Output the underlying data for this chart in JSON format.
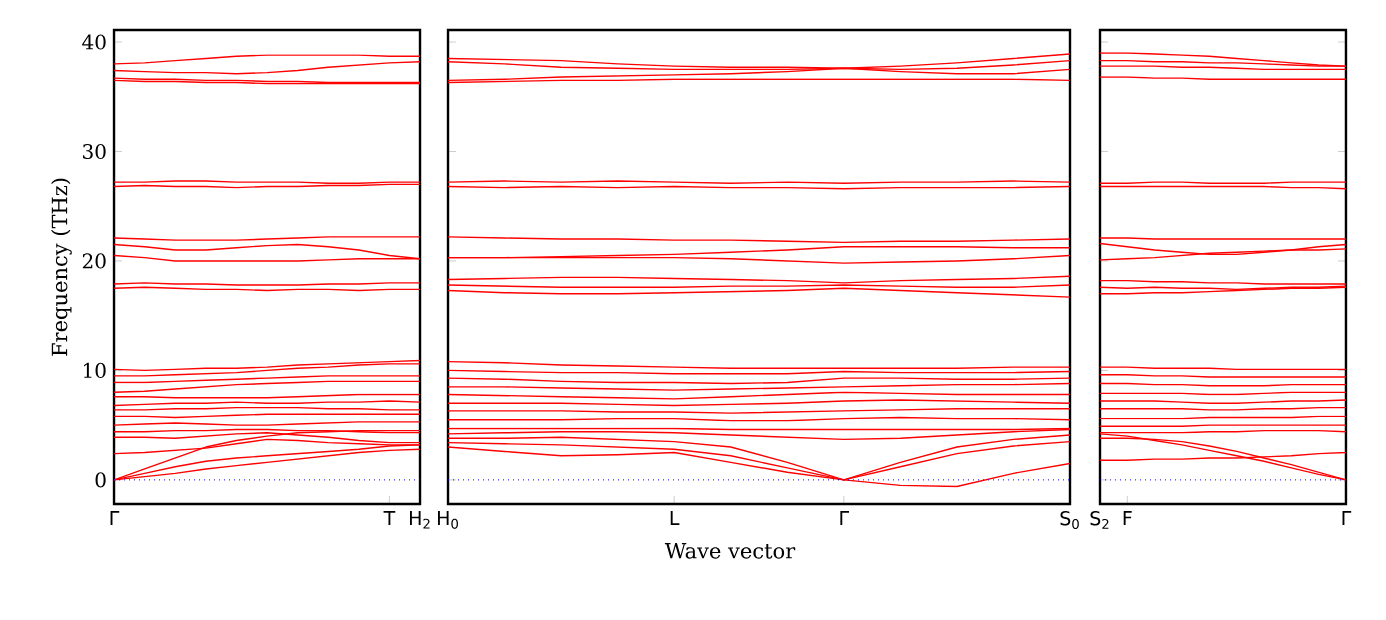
{
  "chart_data": [
    {
      "type": "line",
      "ylabel": "Frequency (THz)",
      "categories": [
        "Γ",
        null,
        null,
        null,
        null,
        null,
        null,
        null,
        null,
        "T",
        "H$_{2}$"
      ],
      "ylim": [
        -2.2,
        41.1
      ],
      "yticks": [
        0,
        10,
        20,
        30,
        40
      ],
      "line_style": "solid",
      "ref_lines": [
        {
          "axis": "y",
          "value": 0,
          "color": "#0000ff",
          "line_style": "dotted"
        }
      ],
      "series": [
        {
          "color": "#ff0000",
          "values": [
            37.4,
            37.3,
            37.2,
            37.2,
            37.1,
            37.2,
            37.4,
            37.7,
            37.9,
            38.1,
            38.2
          ]
        },
        {
          "color": "#ff0000",
          "values": [
            38.0,
            38.1,
            38.3,
            38.5,
            38.7,
            38.8,
            38.8,
            38.8,
            38.8,
            38.7,
            38.7
          ]
        },
        {
          "color": "#ff0000",
          "values": [
            36.5,
            36.4,
            36.4,
            36.3,
            36.3,
            36.2,
            36.2,
            36.2,
            36.2,
            36.2,
            36.2
          ]
        },
        {
          "color": "#ff0000",
          "values": [
            36.7,
            36.6,
            36.6,
            36.5,
            36.5,
            36.4,
            36.4,
            36.3,
            36.3,
            36.3,
            36.3
          ]
        },
        {
          "color": "#ff0000",
          "values": [
            27.2,
            27.2,
            27.3,
            27.3,
            27.2,
            27.2,
            27.2,
            27.1,
            27.1,
            27.2,
            27.2
          ]
        },
        {
          "color": "#ff0000",
          "values": [
            26.8,
            26.9,
            26.8,
            26.8,
            26.7,
            26.8,
            26.8,
            26.9,
            26.9,
            27.0,
            27.0
          ]
        },
        {
          "color": "#ff0000",
          "values": [
            22.1,
            22.0,
            21.9,
            21.9,
            21.9,
            22.0,
            22.1,
            22.2,
            22.2,
            22.2,
            22.2
          ]
        },
        {
          "color": "#ff0000",
          "values": [
            21.5,
            21.3,
            21.0,
            21.0,
            21.2,
            21.4,
            21.5,
            21.3,
            21.0,
            20.5,
            20.2
          ]
        },
        {
          "color": "#ff0000",
          "values": [
            20.5,
            20.3,
            20.0,
            20.0,
            20.0,
            20.0,
            20.0,
            20.1,
            20.2,
            20.2,
            20.2
          ]
        },
        {
          "color": "#ff0000",
          "values": [
            17.9,
            18.0,
            17.9,
            17.9,
            17.8,
            17.8,
            17.8,
            17.9,
            17.9,
            18.0,
            18.0
          ]
        },
        {
          "color": "#ff0000",
          "values": [
            17.5,
            17.6,
            17.5,
            17.4,
            17.4,
            17.3,
            17.4,
            17.4,
            17.3,
            17.4,
            17.4
          ]
        },
        {
          "color": "#ff0000",
          "values": [
            10.1,
            10.0,
            10.1,
            10.2,
            10.2,
            10.3,
            10.5,
            10.6,
            10.7,
            10.8,
            10.9
          ]
        },
        {
          "color": "#ff0000",
          "values": [
            9.5,
            9.5,
            9.6,
            9.7,
            9.8,
            10.0,
            10.2,
            10.3,
            10.5,
            10.6,
            10.6
          ]
        },
        {
          "color": "#ff0000",
          "values": [
            8.9,
            8.9,
            9.0,
            9.1,
            9.2,
            9.3,
            9.4,
            9.5,
            9.5,
            9.5,
            9.5
          ]
        },
        {
          "color": "#ff0000",
          "values": [
            8.0,
            8.1,
            8.3,
            8.5,
            8.7,
            8.8,
            8.9,
            9.0,
            9.0,
            9.0,
            9.0
          ]
        },
        {
          "color": "#ff0000",
          "values": [
            7.6,
            7.6,
            7.5,
            7.5,
            7.5,
            7.5,
            7.6,
            7.7,
            7.8,
            7.8,
            7.8
          ]
        },
        {
          "color": "#ff0000",
          "values": [
            6.8,
            6.9,
            7.0,
            7.0,
            7.1,
            7.0,
            7.0,
            7.1,
            7.1,
            7.2,
            7.1
          ]
        },
        {
          "color": "#ff0000",
          "values": [
            6.4,
            6.4,
            6.5,
            6.5,
            6.6,
            6.6,
            6.6,
            6.5,
            6.5,
            6.4,
            6.4
          ]
        },
        {
          "color": "#ff0000",
          "values": [
            5.8,
            5.8,
            5.7,
            5.8,
            5.9,
            6.0,
            6.0,
            6.0,
            6.0,
            6.0,
            6.0
          ]
        },
        {
          "color": "#ff0000",
          "values": [
            5.0,
            5.1,
            5.2,
            5.1,
            5.0,
            5.0,
            5.1,
            5.2,
            5.3,
            5.3,
            5.3
          ]
        },
        {
          "color": "#ff0000",
          "values": [
            4.4,
            4.4,
            4.5,
            4.5,
            4.6,
            4.6,
            4.5,
            4.5,
            4.4,
            4.3,
            4.3
          ]
        },
        {
          "color": "#ff0000",
          "values": [
            3.9,
            3.9,
            3.8,
            4.0,
            4.2,
            4.3,
            4.1,
            3.9,
            3.6,
            3.4,
            3.4
          ]
        },
        {
          "color": "#ff0000",
          "values": [
            2.4,
            2.5,
            2.7,
            2.9,
            3.3,
            3.7,
            3.6,
            3.4,
            3.3,
            3.2,
            3.2
          ]
        },
        {
          "color": "#ff0000",
          "values": [
            0,
            0.6,
            1.2,
            1.7,
            2.0,
            2.2,
            2.4,
            2.6,
            2.8,
            3.1,
            3.2
          ]
        },
        {
          "color": "#ff0000",
          "values": [
            0,
            0.3,
            0.6,
            1.0,
            1.3,
            1.6,
            1.9,
            2.2,
            2.5,
            2.7,
            2.8
          ]
        },
        {
          "color": "#ff0000",
          "values": [
            0,
            1.0,
            2.0,
            3.0,
            3.6,
            4.0,
            4.3,
            4.4,
            4.5,
            4.5,
            4.5
          ]
        }
      ]
    },
    {
      "type": "line",
      "xlabel": "Wave vector",
      "tick_labels": "x",
      "categories": [
        "H$_{0}$",
        null,
        null,
        null,
        "L",
        null,
        null,
        "Γ",
        null,
        null,
        null,
        "S$_{0}$"
      ],
      "ylim": [
        -2.2,
        41.1
      ],
      "yticks": [
        0,
        10,
        20,
        30,
        40
      ],
      "line_style": "solid",
      "ref_lines": [
        {
          "axis": "y",
          "value": 0,
          "color": "#0000ff",
          "line_style": "dotted"
        }
      ],
      "series": [
        {
          "color": "#ff0000",
          "values": [
            38.5,
            38.4,
            38.3,
            38.0,
            37.8,
            37.7,
            37.7,
            37.6,
            37.8,
            38.1,
            38.5,
            38.9
          ]
        },
        {
          "color": "#ff0000",
          "values": [
            38.2,
            38.0,
            37.7,
            37.6,
            37.5,
            37.5,
            37.5,
            37.6,
            37.5,
            37.6,
            37.9,
            38.3
          ]
        },
        {
          "color": "#ff0000",
          "values": [
            36.5,
            36.6,
            36.8,
            36.9,
            37.0,
            37.1,
            37.3,
            37.6,
            37.3,
            37.1,
            37.1,
            37.5
          ]
        },
        {
          "color": "#ff0000",
          "values": [
            36.3,
            36.4,
            36.5,
            36.5,
            36.6,
            36.6,
            36.6,
            36.6,
            36.6,
            36.6,
            36.6,
            36.5
          ]
        },
        {
          "color": "#ff0000",
          "values": [
            27.2,
            27.3,
            27.2,
            27.3,
            27.2,
            27.1,
            27.2,
            27.1,
            27.2,
            27.2,
            27.3,
            27.2
          ]
        },
        {
          "color": "#ff0000",
          "values": [
            26.8,
            26.7,
            26.8,
            26.7,
            26.8,
            26.7,
            26.7,
            26.6,
            26.7,
            26.7,
            26.7,
            26.8
          ]
        },
        {
          "color": "#ff0000",
          "values": [
            22.2,
            22.1,
            22.0,
            22.0,
            21.9,
            21.9,
            21.8,
            21.7,
            21.8,
            21.8,
            21.9,
            22.0
          ]
        },
        {
          "color": "#ff0000",
          "values": [
            20.3,
            20.3,
            20.4,
            20.5,
            20.6,
            20.8,
            21.0,
            21.3,
            21.3,
            21.3,
            21.2,
            21.2
          ]
        },
        {
          "color": "#ff0000",
          "values": [
            20.3,
            20.3,
            20.3,
            20.3,
            20.3,
            20.2,
            20.0,
            19.8,
            19.9,
            20.0,
            20.2,
            20.5
          ]
        },
        {
          "color": "#ff0000",
          "values": [
            18.3,
            18.4,
            18.5,
            18.5,
            18.4,
            18.3,
            18.2,
            18.0,
            18.2,
            18.3,
            18.4,
            18.6
          ]
        },
        {
          "color": "#ff0000",
          "values": [
            17.8,
            17.7,
            17.6,
            17.6,
            17.6,
            17.7,
            17.7,
            17.8,
            17.7,
            17.6,
            17.6,
            17.8
          ]
        },
        {
          "color": "#ff0000",
          "values": [
            17.3,
            17.1,
            17.0,
            17.0,
            17.1,
            17.2,
            17.3,
            17.5,
            17.3,
            17.1,
            16.9,
            16.7
          ]
        },
        {
          "color": "#ff0000",
          "values": [
            10.8,
            10.7,
            10.5,
            10.4,
            10.3,
            10.2,
            10.2,
            10.2,
            10.2,
            10.2,
            10.3,
            10.3
          ]
        },
        {
          "color": "#ff0000",
          "values": [
            10.0,
            9.9,
            9.8,
            9.8,
            9.7,
            9.7,
            9.7,
            9.9,
            9.8,
            9.8,
            9.8,
            9.9
          ]
        },
        {
          "color": "#ff0000",
          "values": [
            9.3,
            9.2,
            9.0,
            8.9,
            8.9,
            8.8,
            8.9,
            9.3,
            9.3,
            9.2,
            9.2,
            9.3
          ]
        },
        {
          "color": "#ff0000",
          "values": [
            8.5,
            8.5,
            8.4,
            8.3,
            8.2,
            8.3,
            8.4,
            8.5,
            8.6,
            8.7,
            8.7,
            8.8
          ]
        },
        {
          "color": "#ff0000",
          "values": [
            7.8,
            7.7,
            7.6,
            7.5,
            7.4,
            7.6,
            7.8,
            8.0,
            7.9,
            7.8,
            7.8,
            7.8
          ]
        },
        {
          "color": "#ff0000",
          "values": [
            7.0,
            7.0,
            7.0,
            6.9,
            6.8,
            6.9,
            7.0,
            7.2,
            7.3,
            7.2,
            7.1,
            7.0
          ]
        },
        {
          "color": "#ff0000",
          "values": [
            6.3,
            6.3,
            6.3,
            6.2,
            6.2,
            6.1,
            6.2,
            6.3,
            6.4,
            6.5,
            6.5,
            6.5
          ]
        },
        {
          "color": "#ff0000",
          "values": [
            5.5,
            5.5,
            5.5,
            5.6,
            5.6,
            5.4,
            5.4,
            5.6,
            5.7,
            5.6,
            5.6,
            5.5
          ]
        },
        {
          "color": "#ff0000",
          "values": [
            4.7,
            4.7,
            4.7,
            4.7,
            4.7,
            4.6,
            4.6,
            4.6,
            4.6,
            4.6,
            4.6,
            4.7
          ]
        },
        {
          "color": "#ff0000",
          "values": [
            4.2,
            4.3,
            4.4,
            4.4,
            4.3,
            4.1,
            3.9,
            3.7,
            3.8,
            4.1,
            4.4,
            4.6
          ]
        },
        {
          "color": "#ff0000",
          "values": [
            3.8,
            3.8,
            3.9,
            3.7,
            3.5,
            3.0,
            1.6,
            0,
            1.6,
            3.0,
            3.7,
            4.1
          ]
        },
        {
          "color": "#ff0000",
          "values": [
            3.4,
            3.3,
            3.2,
            3.0,
            2.8,
            2.2,
            1.1,
            0,
            1.2,
            2.4,
            3.1,
            3.5
          ]
        },
        {
          "color": "#ff0000",
          "values": [
            3.0,
            2.6,
            2.2,
            2.3,
            2.5,
            1.6,
            0.7,
            0,
            -0.5,
            -0.6,
            0.6,
            1.5
          ]
        }
      ]
    },
    {
      "type": "line",
      "tick_labels": "x",
      "categories": [
        "S$_{2}$",
        "F",
        null,
        null,
        null,
        null,
        null,
        null,
        null,
        "Γ"
      ],
      "ylim": [
        -2.2,
        41.1
      ],
      "yticks": [
        0,
        10,
        20,
        30,
        40
      ],
      "line_style": "solid",
      "ref_lines": [
        {
          "axis": "y",
          "value": 0,
          "color": "#0000ff",
          "line_style": "dotted"
        }
      ],
      "series": [
        {
          "color": "#ff0000",
          "values": [
            39.0,
            39.0,
            38.9,
            38.8,
            38.7,
            38.5,
            38.3,
            38.1,
            37.9,
            37.8
          ]
        },
        {
          "color": "#ff0000",
          "values": [
            38.3,
            38.3,
            38.2,
            38.2,
            38.1,
            38.1,
            38.0,
            37.9,
            37.8,
            37.8
          ]
        },
        {
          "color": "#ff0000",
          "values": [
            37.8,
            37.8,
            37.8,
            37.7,
            37.7,
            37.6,
            37.5,
            37.5,
            37.5,
            37.5
          ]
        },
        {
          "color": "#ff0000",
          "values": [
            36.8,
            36.8,
            36.7,
            36.7,
            36.6,
            36.6,
            36.6,
            36.6,
            36.6,
            36.6
          ]
        },
        {
          "color": "#ff0000",
          "values": [
            27.1,
            27.1,
            27.2,
            27.2,
            27.1,
            27.1,
            27.1,
            27.2,
            27.2,
            27.2
          ]
        },
        {
          "color": "#ff0000",
          "values": [
            26.8,
            26.8,
            26.8,
            26.8,
            26.8,
            26.8,
            26.8,
            26.7,
            26.7,
            26.6
          ]
        },
        {
          "color": "#ff0000",
          "values": [
            22.1,
            22.1,
            22.0,
            22.0,
            22.0,
            22.0,
            22.0,
            22.0,
            22.0,
            22.0
          ]
        },
        {
          "color": "#ff0000",
          "values": [
            21.6,
            21.3,
            21.0,
            20.8,
            20.6,
            20.6,
            20.8,
            21.0,
            21.3,
            21.5
          ]
        },
        {
          "color": "#ff0000",
          "values": [
            20.1,
            20.2,
            20.3,
            20.5,
            20.7,
            20.8,
            20.9,
            21.0,
            21.0,
            21.1
          ]
        },
        {
          "color": "#ff0000",
          "values": [
            18.2,
            18.2,
            18.1,
            18.1,
            18.0,
            18.0,
            17.9,
            17.9,
            17.9,
            17.9
          ]
        },
        {
          "color": "#ff0000",
          "values": [
            17.6,
            17.5,
            17.6,
            17.5,
            17.5,
            17.4,
            17.5,
            17.6,
            17.6,
            17.7
          ]
        },
        {
          "color": "#ff0000",
          "values": [
            17.0,
            17.0,
            17.1,
            17.1,
            17.2,
            17.3,
            17.4,
            17.5,
            17.5,
            17.6
          ]
        },
        {
          "color": "#ff0000",
          "values": [
            10.3,
            10.3,
            10.2,
            10.2,
            10.2,
            10.1,
            10.1,
            10.1,
            10.1,
            10.1
          ]
        },
        {
          "color": "#ff0000",
          "values": [
            9.6,
            9.6,
            9.5,
            9.5,
            9.4,
            9.4,
            9.4,
            9.4,
            9.4,
            9.4
          ]
        },
        {
          "color": "#ff0000",
          "values": [
            8.8,
            8.8,
            8.7,
            8.7,
            8.6,
            8.6,
            8.6,
            8.7,
            8.7,
            8.7
          ]
        },
        {
          "color": "#ff0000",
          "values": [
            7.9,
            7.9,
            7.9,
            7.9,
            7.8,
            7.8,
            7.9,
            8.0,
            8.0,
            8.0
          ]
        },
        {
          "color": "#ff0000",
          "values": [
            7.2,
            7.2,
            7.2,
            7.1,
            7.0,
            7.0,
            7.1,
            7.2,
            7.2,
            7.3
          ]
        },
        {
          "color": "#ff0000",
          "values": [
            6.5,
            6.5,
            6.5,
            6.5,
            6.4,
            6.4,
            6.5,
            6.5,
            6.6,
            6.6
          ]
        },
        {
          "color": "#ff0000",
          "values": [
            5.6,
            5.6,
            5.6,
            5.6,
            5.7,
            5.7,
            5.7,
            5.7,
            5.8,
            5.8
          ]
        },
        {
          "color": "#ff0000",
          "values": [
            4.9,
            4.9,
            4.9,
            4.9,
            5.0,
            5.0,
            5.0,
            5.0,
            5.0,
            5.0
          ]
        },
        {
          "color": "#ff0000",
          "values": [
            4.3,
            4.3,
            4.3,
            4.3,
            4.4,
            4.4,
            4.5,
            4.5,
            4.5,
            4.4
          ]
        },
        {
          "color": "#ff0000",
          "values": [
            3.8,
            3.8,
            3.7,
            3.5,
            3.1,
            2.6,
            2.0,
            1.4,
            0.7,
            0
          ]
        },
        {
          "color": "#ff0000",
          "values": [
            4.2,
            4.0,
            3.6,
            3.2,
            2.7,
            2.2,
            1.7,
            1.1,
            0.5,
            0
          ]
        },
        {
          "color": "#ff0000",
          "values": [
            1.8,
            1.8,
            1.9,
            1.9,
            2.0,
            2.0,
            2.1,
            2.2,
            2.4,
            2.5
          ]
        }
      ]
    }
  ]
}
